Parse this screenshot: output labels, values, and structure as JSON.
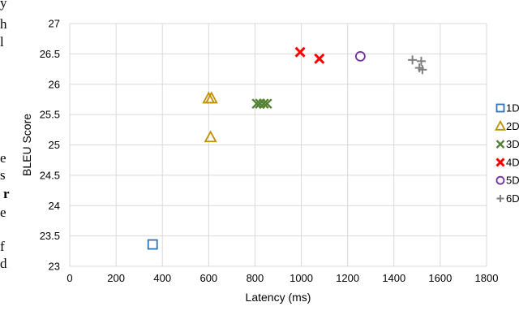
{
  "page_text": {
    "fragments": [
      "y",
      "h",
      "l",
      "e",
      "s",
      "r",
      "e",
      "f",
      "d"
    ]
  },
  "chart_data": {
    "type": "scatter",
    "title": "",
    "xlabel": "Latency (ms)",
    "ylabel": "BLEU Score",
    "xlim": [
      0,
      1800
    ],
    "ylim": [
      23,
      27
    ],
    "x_ticks": [
      "0",
      "200",
      "400",
      "600",
      "800",
      "1000",
      "1200",
      "1400",
      "1600",
      "1800"
    ],
    "y_ticks": [
      "23",
      "23.5",
      "24",
      "24.5",
      "25",
      "25.5",
      "26",
      "26.5",
      "27"
    ],
    "grid": true,
    "legend_position": "right",
    "series": [
      {
        "name": "1D",
        "marker": "square",
        "color": "#2e75b6",
        "points": [
          {
            "x": 358,
            "y": 23.36
          }
        ]
      },
      {
        "name": "2D",
        "marker": "triangle",
        "color": "#bf9000",
        "points": [
          {
            "x": 600,
            "y": 25.77
          },
          {
            "x": 612,
            "y": 25.77
          },
          {
            "x": 608,
            "y": 25.13
          }
        ]
      },
      {
        "name": "3D",
        "marker": "x",
        "color": "#548235",
        "points": [
          {
            "x": 808,
            "y": 25.68
          },
          {
            "x": 822,
            "y": 25.68
          },
          {
            "x": 838,
            "y": 25.68
          },
          {
            "x": 852,
            "y": 25.68
          }
        ]
      },
      {
        "name": "4D",
        "marker": "x-bold",
        "color": "#ff0000",
        "points": [
          {
            "x": 995,
            "y": 26.53
          },
          {
            "x": 1078,
            "y": 26.42
          }
        ]
      },
      {
        "name": "5D",
        "marker": "circle",
        "color": "#7030a0",
        "points": [
          {
            "x": 1255,
            "y": 26.46
          }
        ]
      },
      {
        "name": "6D",
        "marker": "plus",
        "color": "#7f7f7f",
        "points": [
          {
            "x": 1480,
            "y": 26.4
          },
          {
            "x": 1518,
            "y": 26.38
          },
          {
            "x": 1510,
            "y": 26.27
          },
          {
            "x": 1523,
            "y": 26.24
          }
        ]
      }
    ]
  }
}
